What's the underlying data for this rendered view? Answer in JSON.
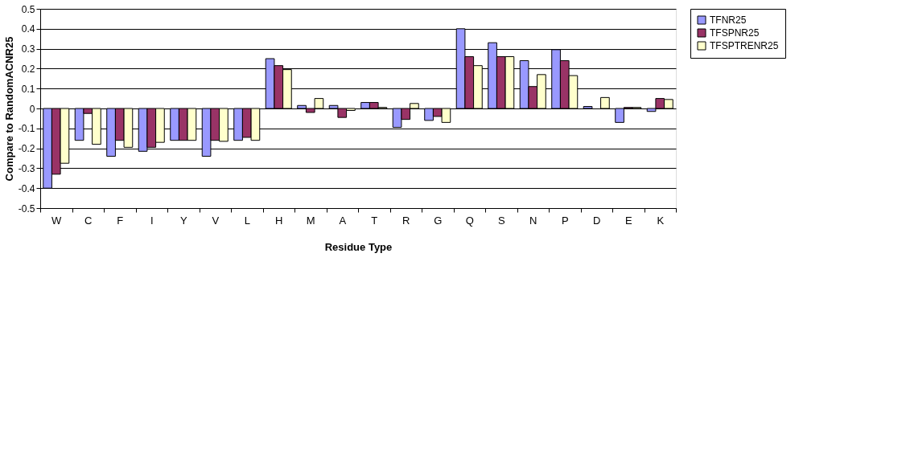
{
  "chart_data": {
    "type": "bar",
    "xlabel": "Residue Type",
    "ylabel": "Compare to RandomACNR25",
    "categories": [
      "W",
      "C",
      "F",
      "I",
      "Y",
      "V",
      "L",
      "H",
      "M",
      "A",
      "T",
      "R",
      "G",
      "Q",
      "S",
      "N",
      "P",
      "D",
      "E",
      "K"
    ],
    "series": [
      {
        "name": "TFNR25",
        "color": "#9999ff",
        "values": [
          -0.4,
          -0.16,
          -0.24,
          -0.215,
          -0.16,
          -0.24,
          -0.16,
          0.25,
          0.015,
          0.015,
          0.03,
          -0.095,
          -0.06,
          0.4,
          0.33,
          0.24,
          0.295,
          0.01,
          -0.07,
          -0.015
        ]
      },
      {
        "name": "TFSPNR25",
        "color": "#993366",
        "values": [
          -0.33,
          -0.025,
          -0.16,
          -0.195,
          -0.16,
          -0.16,
          -0.145,
          0.215,
          -0.02,
          -0.045,
          0.03,
          -0.055,
          -0.04,
          0.26,
          0.26,
          0.11,
          0.24,
          null,
          0.005,
          0.05
        ]
      },
      {
        "name": "TFSPTRENR25",
        "color": "#ffffcc",
        "values": [
          -0.275,
          -0.18,
          -0.195,
          -0.17,
          -0.16,
          -0.165,
          -0.16,
          0.195,
          0.05,
          -0.01,
          0.005,
          0.025,
          -0.07,
          0.215,
          0.26,
          0.17,
          0.165,
          0.055,
          0.005,
          0.045
        ]
      }
    ],
    "ylim": [
      -0.5,
      0.5
    ],
    "yticks": [
      -0.5,
      -0.4,
      -0.3,
      -0.2,
      -0.1,
      0,
      0.1,
      0.2,
      0.3,
      0.4,
      0.5
    ],
    "grid": "y",
    "legend": "right"
  }
}
